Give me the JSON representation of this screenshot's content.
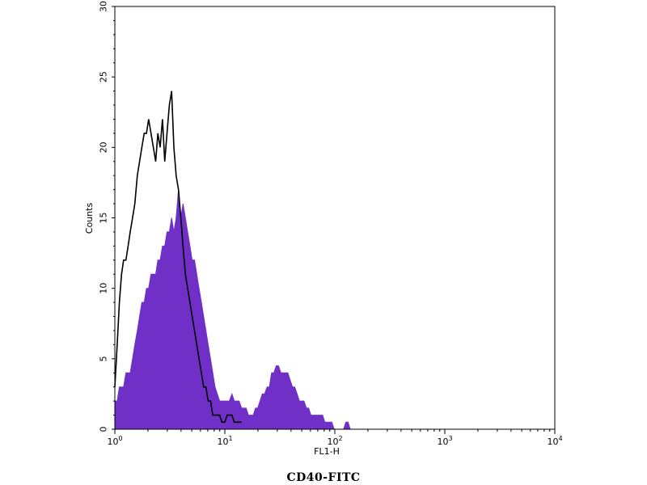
{
  "chart_data": {
    "type": "area",
    "title": "",
    "xlabel": "FL1-H",
    "ylabel": "Counts",
    "caption": "CD40-FITC",
    "x_scale": "log",
    "xlim": [
      1,
      10000
    ],
    "ylim": [
      0,
      30
    ],
    "x_ticks": [
      {
        "value": 1,
        "base": "10",
        "exp": "0"
      },
      {
        "value": 10,
        "base": "10",
        "exp": "1"
      },
      {
        "value": 100,
        "base": "10",
        "exp": "2"
      },
      {
        "value": 1000,
        "base": "10",
        "exp": "3"
      },
      {
        "value": 10000,
        "base": "10",
        "exp": "4"
      }
    ],
    "y_ticks": [
      "0",
      "5",
      "10",
      "15",
      "20",
      "25",
      "30"
    ],
    "grid": false,
    "series": [
      {
        "style": "outline",
        "color": "#000000",
        "points": [
          [
            1.0,
            3
          ],
          [
            1.05,
            6
          ],
          [
            1.1,
            9
          ],
          [
            1.15,
            11
          ],
          [
            1.2,
            12
          ],
          [
            1.26,
            12
          ],
          [
            1.32,
            13
          ],
          [
            1.38,
            14
          ],
          [
            1.45,
            15
          ],
          [
            1.52,
            16
          ],
          [
            1.6,
            18
          ],
          [
            1.68,
            19
          ],
          [
            1.76,
            20
          ],
          [
            1.85,
            21
          ],
          [
            1.94,
            21
          ],
          [
            2.03,
            22
          ],
          [
            2.13,
            21
          ],
          [
            2.24,
            20
          ],
          [
            2.35,
            19
          ],
          [
            2.46,
            21
          ],
          [
            2.58,
            20
          ],
          [
            2.71,
            22
          ],
          [
            2.84,
            19
          ],
          [
            2.98,
            21
          ],
          [
            3.13,
            23
          ],
          [
            3.28,
            24
          ],
          [
            3.44,
            20
          ],
          [
            3.61,
            18
          ],
          [
            3.79,
            17
          ],
          [
            3.98,
            15
          ],
          [
            4.17,
            13
          ],
          [
            4.38,
            11
          ],
          [
            4.59,
            10
          ],
          [
            4.82,
            9
          ],
          [
            5.05,
            8
          ],
          [
            5.3,
            7
          ],
          [
            5.56,
            6
          ],
          [
            5.83,
            5
          ],
          [
            6.12,
            4
          ],
          [
            6.42,
            3
          ],
          [
            6.73,
            3
          ],
          [
            7.06,
            2
          ],
          [
            7.41,
            2
          ],
          [
            7.77,
            1
          ],
          [
            8.15,
            1
          ],
          [
            8.55,
            1
          ],
          [
            8.97,
            1
          ],
          [
            9.41,
            0.5
          ],
          [
            10.0,
            0.5
          ],
          [
            10.5,
            1
          ],
          [
            11.0,
            1
          ],
          [
            11.6,
            1
          ],
          [
            12.2,
            0.5
          ],
          [
            12.8,
            0.5
          ],
          [
            13.5,
            0.5
          ],
          [
            14.2,
            0.5
          ]
        ]
      },
      {
        "style": "filled",
        "color": "#7030c8",
        "points": [
          [
            1.0,
            2
          ],
          [
            1.05,
            2
          ],
          [
            1.1,
            3
          ],
          [
            1.15,
            3
          ],
          [
            1.2,
            3
          ],
          [
            1.26,
            4
          ],
          [
            1.32,
            4
          ],
          [
            1.38,
            4
          ],
          [
            1.45,
            5
          ],
          [
            1.52,
            6
          ],
          [
            1.6,
            7
          ],
          [
            1.68,
            8
          ],
          [
            1.76,
            9
          ],
          [
            1.85,
            9
          ],
          [
            1.94,
            10
          ],
          [
            2.03,
            10
          ],
          [
            2.13,
            11
          ],
          [
            2.24,
            11
          ],
          [
            2.35,
            11
          ],
          [
            2.46,
            12
          ],
          [
            2.58,
            12
          ],
          [
            2.71,
            13
          ],
          [
            2.84,
            13
          ],
          [
            2.98,
            14
          ],
          [
            3.13,
            14
          ],
          [
            3.28,
            15
          ],
          [
            3.44,
            14
          ],
          [
            3.61,
            15
          ],
          [
            3.79,
            17
          ],
          [
            3.98,
            15
          ],
          [
            4.17,
            16
          ],
          [
            4.38,
            15
          ],
          [
            4.59,
            14
          ],
          [
            4.82,
            13
          ],
          [
            5.05,
            12
          ],
          [
            5.3,
            12
          ],
          [
            5.56,
            11
          ],
          [
            5.83,
            10
          ],
          [
            6.12,
            9
          ],
          [
            6.42,
            8
          ],
          [
            6.73,
            7
          ],
          [
            7.06,
            6
          ],
          [
            7.41,
            5
          ],
          [
            7.77,
            4
          ],
          [
            8.15,
            3
          ],
          [
            8.55,
            2.5
          ],
          [
            8.97,
            2
          ],
          [
            9.41,
            2
          ],
          [
            10.0,
            2
          ],
          [
            10.5,
            2
          ],
          [
            11.0,
            2
          ],
          [
            11.6,
            2.5
          ],
          [
            12.2,
            2
          ],
          [
            12.8,
            2
          ],
          [
            13.5,
            2
          ],
          [
            14.2,
            1.5
          ],
          [
            14.9,
            1.5
          ],
          [
            15.6,
            1.5
          ],
          [
            16.4,
            1
          ],
          [
            17.2,
            1
          ],
          [
            18.1,
            1
          ],
          [
            19.0,
            1.5
          ],
          [
            19.9,
            1.5
          ],
          [
            20.9,
            2
          ],
          [
            21.9,
            2.5
          ],
          [
            23.0,
            2.5
          ],
          [
            24.2,
            3
          ],
          [
            25.4,
            3
          ],
          [
            26.6,
            4
          ],
          [
            27.9,
            4
          ],
          [
            29.3,
            4.5
          ],
          [
            30.8,
            4.5
          ],
          [
            32.3,
            4
          ],
          [
            33.9,
            4
          ],
          [
            35.6,
            4
          ],
          [
            37.4,
            4
          ],
          [
            39.2,
            3.5
          ],
          [
            41.2,
            3
          ],
          [
            43.2,
            3
          ],
          [
            45.4,
            2.5
          ],
          [
            47.6,
            2
          ],
          [
            50.0,
            2
          ],
          [
            52.5,
            2
          ],
          [
            55.1,
            1.5
          ],
          [
            57.8,
            1.5
          ],
          [
            60.7,
            1
          ],
          [
            63.7,
            1
          ],
          [
            66.9,
            1
          ],
          [
            70.2,
            1
          ],
          [
            73.7,
            1
          ],
          [
            77.4,
            1
          ],
          [
            81.2,
            0.5
          ],
          [
            85.3,
            0.5
          ],
          [
            89.5,
            0.5
          ],
          [
            94.0,
            0.5
          ],
          [
            98.6,
            0
          ],
          [
            103,
            0
          ],
          [
            108,
            0
          ],
          [
            114,
            0
          ],
          [
            120,
            0
          ],
          [
            126,
            0.5
          ],
          [
            132,
            0.5
          ],
          [
            138,
            0
          ]
        ]
      }
    ]
  }
}
